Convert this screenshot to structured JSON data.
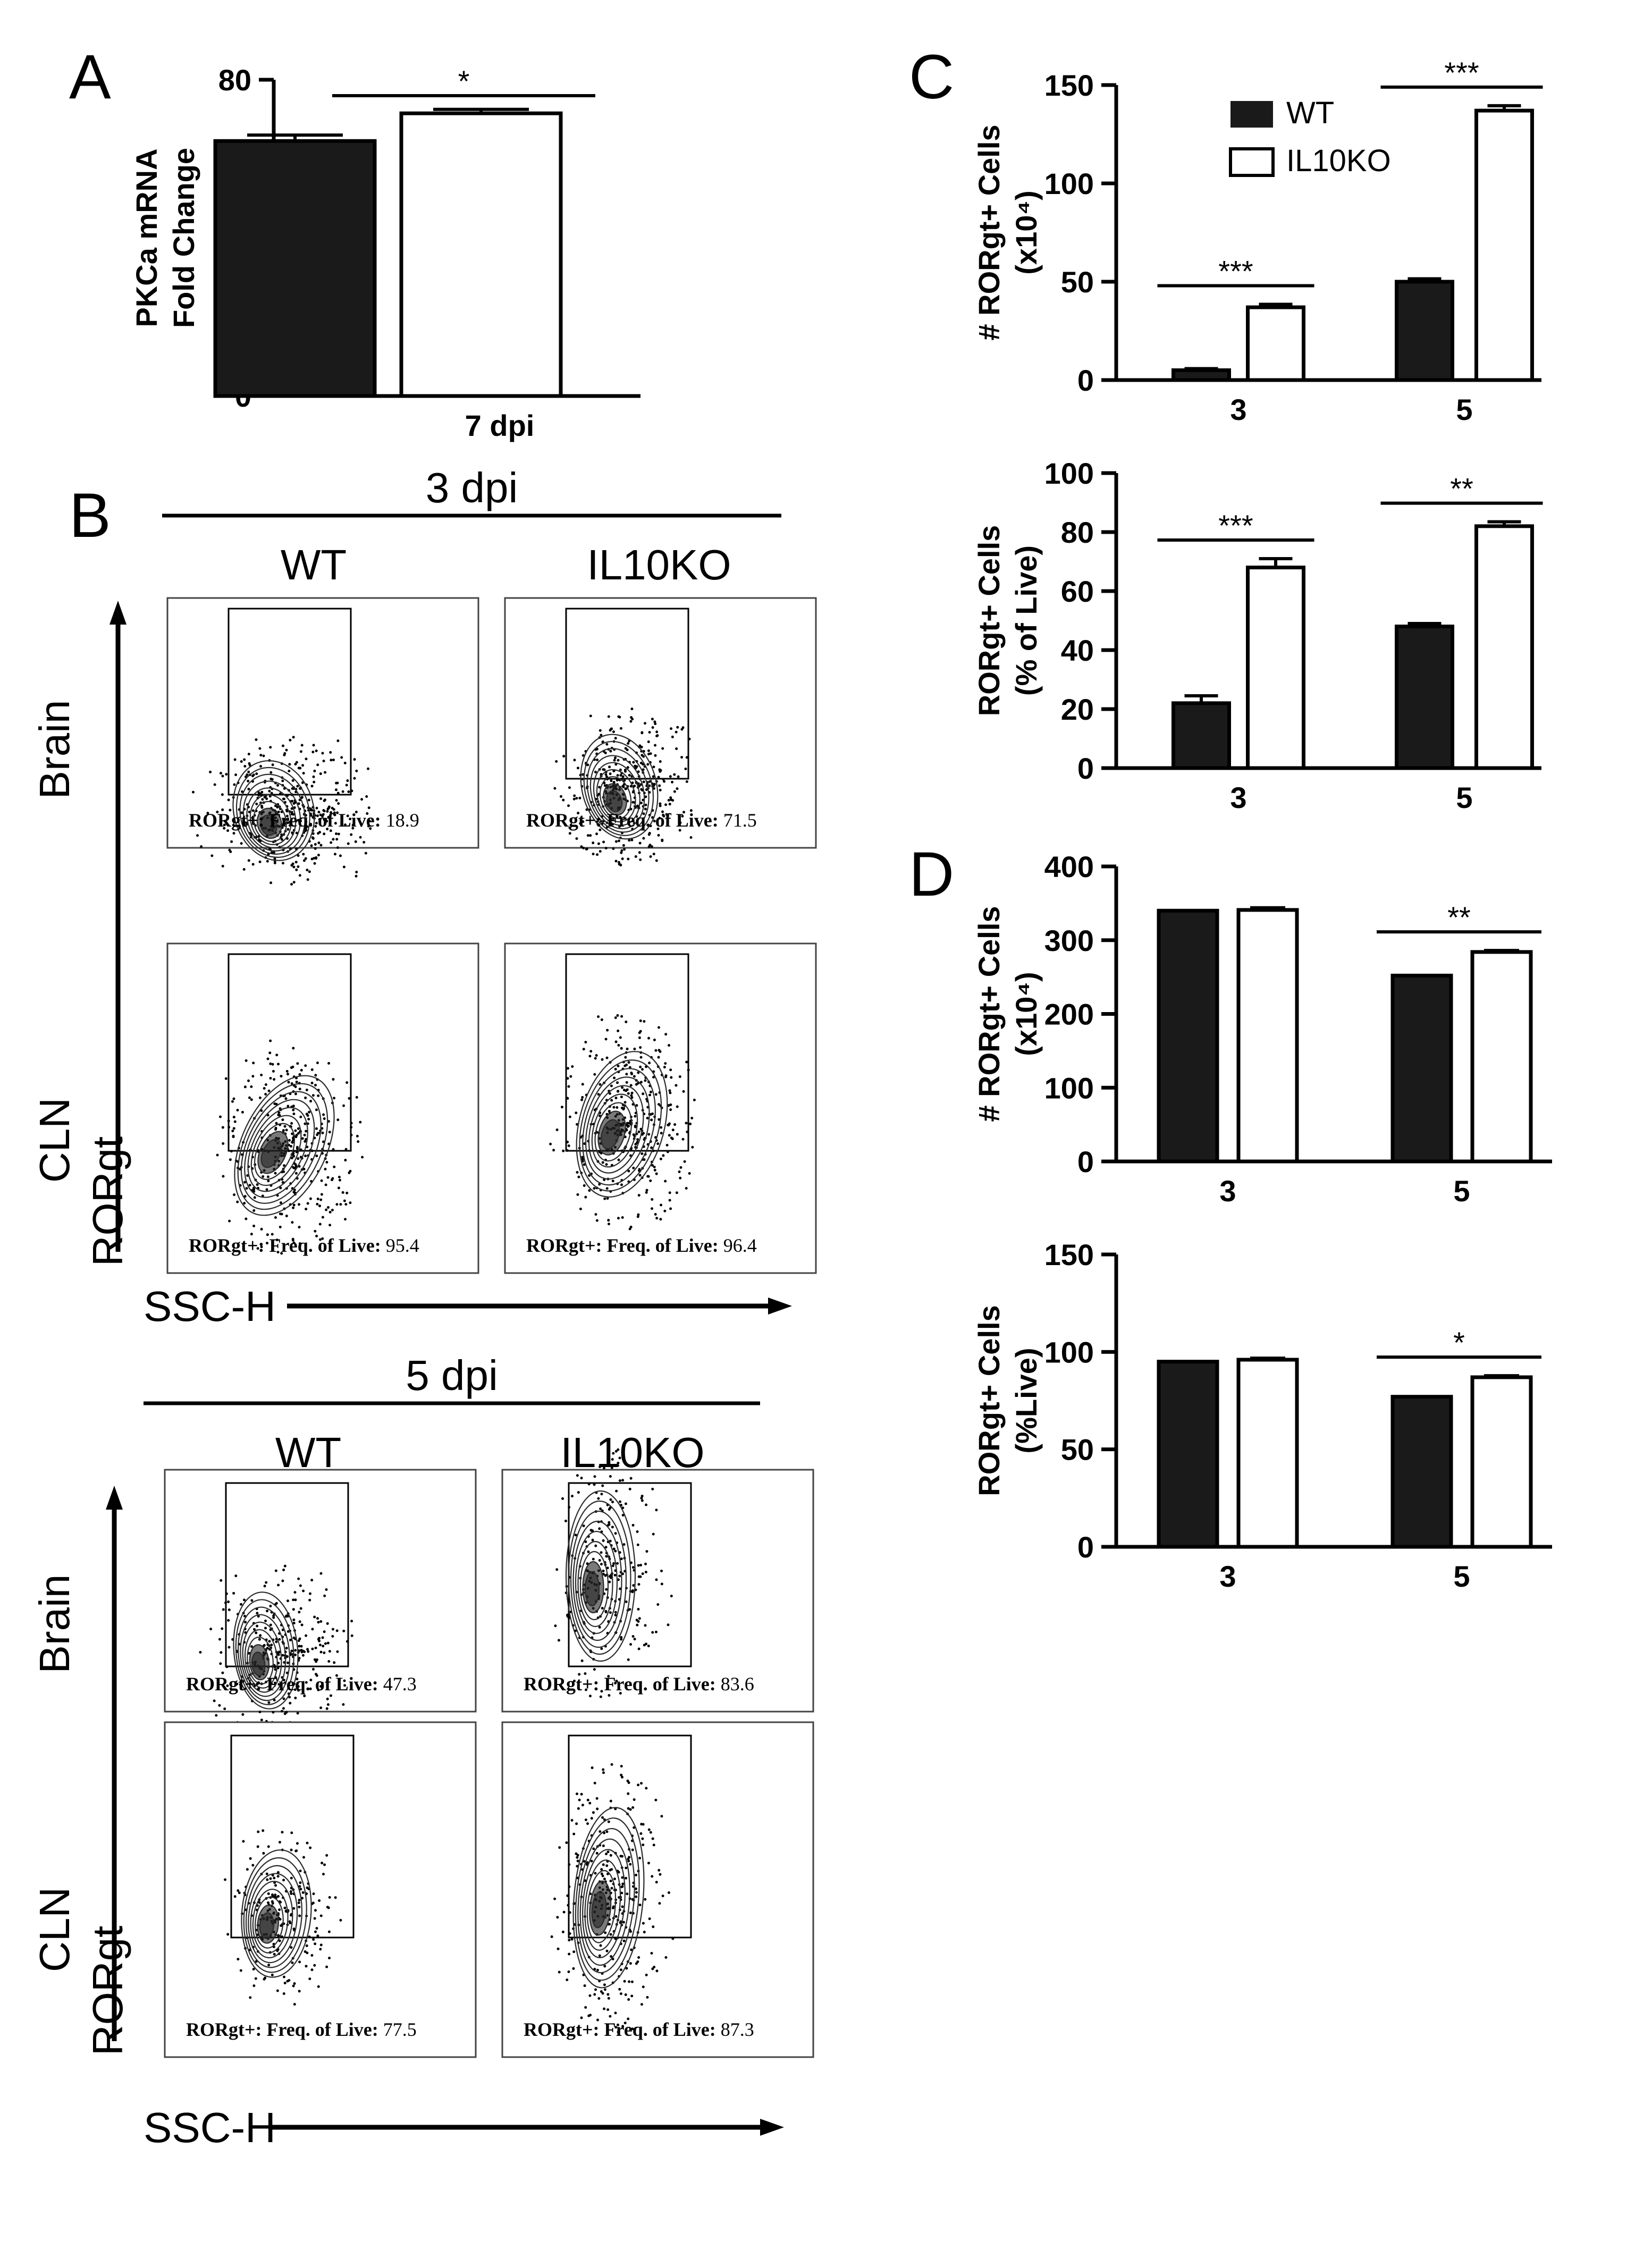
{
  "panel_letters": {
    "a": "A",
    "b": "B",
    "c": "C",
    "d": "D"
  },
  "colors": {
    "wt": "#1a1a1a",
    "il10ko": "#ffffff",
    "axis": "#000000",
    "contour": "#2b2b2b"
  },
  "legend": {
    "wt": "WT",
    "il10ko": "IL10KO"
  },
  "chart_data": [
    {
      "id": "A",
      "type": "bar",
      "categories": [
        "7 dpi"
      ],
      "series": [
        {
          "name": "WT",
          "values": [
            64.5
          ],
          "errors": [
            1.5
          ]
        },
        {
          "name": "IL10KO",
          "values": [
            71.5
          ],
          "errors": [
            1.0
          ]
        }
      ],
      "ylabel_lines": [
        "PKCa mRNA",
        "Fold Change"
      ],
      "ylim": [
        0,
        80
      ],
      "yticks": [
        0,
        20,
        40,
        60,
        80
      ],
      "significance": [
        {
          "category": 0,
          "label": "*"
        }
      ]
    },
    {
      "id": "C1",
      "type": "bar",
      "categories": [
        "3",
        "5"
      ],
      "series": [
        {
          "name": "WT",
          "values": [
            5,
            50
          ],
          "errors": [
            0.8,
            1.5
          ]
        },
        {
          "name": "IL10KO",
          "values": [
            37,
            137
          ],
          "errors": [
            1.5,
            2.5
          ]
        }
      ],
      "ylabel_lines": [
        "# RORgt+ Cells",
        "(x10⁴)"
      ],
      "ylim": [
        0,
        150
      ],
      "yticks": [
        0,
        50,
        100,
        150
      ],
      "significance": [
        {
          "category": 0,
          "label": "***"
        },
        {
          "category": 1,
          "label": "***"
        }
      ]
    },
    {
      "id": "C2",
      "type": "bar",
      "categories": [
        "3",
        "5"
      ],
      "series": [
        {
          "name": "WT",
          "values": [
            22,
            48
          ],
          "errors": [
            2.5,
            1.0
          ]
        },
        {
          "name": "IL10KO",
          "values": [
            68,
            82
          ],
          "errors": [
            3.0,
            1.5
          ]
        }
      ],
      "ylabel_lines": [
        "RORgt+ Cells",
        "(% of Live)"
      ],
      "ylim": [
        0,
        100
      ],
      "yticks": [
        0,
        20,
        40,
        60,
        80,
        100
      ],
      "significance": [
        {
          "category": 0,
          "label": "***"
        },
        {
          "category": 1,
          "label": "**"
        }
      ]
    },
    {
      "id": "D1",
      "type": "bar",
      "categories": [
        "3",
        "5"
      ],
      "series": [
        {
          "name": "WT",
          "values": [
            340,
            252
          ],
          "errors": [
            0,
            0
          ]
        },
        {
          "name": "IL10KO",
          "values": [
            341,
            284
          ],
          "errors": [
            3,
            2
          ]
        }
      ],
      "ylabel_lines": [
        "# RORgt+ Cells",
        "(x10⁴)"
      ],
      "ylim": [
        0,
        400
      ],
      "yticks": [
        0,
        100,
        200,
        300,
        400
      ],
      "significance": [
        {
          "category": 1,
          "label": "**"
        }
      ]
    },
    {
      "id": "D2",
      "type": "bar",
      "categories": [
        "3",
        "5"
      ],
      "series": [
        {
          "name": "WT",
          "values": [
            95,
            77
          ],
          "errors": [
            0,
            0
          ]
        },
        {
          "name": "IL10KO",
          "values": [
            96,
            87
          ],
          "errors": [
            0.8,
            0.8
          ]
        }
      ],
      "ylabel_lines": [
        "RORgt+ Cells",
        "(%Live)"
      ],
      "ylim": [
        0,
        150
      ],
      "yticks": [
        0,
        50,
        100,
        150
      ],
      "significance": [
        {
          "category": 1,
          "label": "*"
        }
      ]
    }
  ],
  "flow": {
    "blocks": [
      {
        "title": "3 dpi",
        "columns": [
          "WT",
          "IL10KO"
        ],
        "rows": [
          "Brain",
          "CLN"
        ],
        "y_axis": "RORgt",
        "x_axis": "SSC-H",
        "gate_label": "RORgt+: Freq. of Live:",
        "values": [
          [
            "18.9",
            "71.5"
          ],
          [
            "95.4",
            "96.4"
          ]
        ]
      },
      {
        "title": "5 dpi",
        "columns": [
          "WT",
          "IL10KO"
        ],
        "rows": [
          "Brain",
          "CLN"
        ],
        "y_axis": "RORgt",
        "x_axis": "SSC-H",
        "gate_label": "RORgt+: Freq. of Live:",
        "values": [
          [
            "47.3",
            "83.6"
          ],
          [
            "77.5",
            "87.3"
          ]
        ]
      }
    ]
  }
}
